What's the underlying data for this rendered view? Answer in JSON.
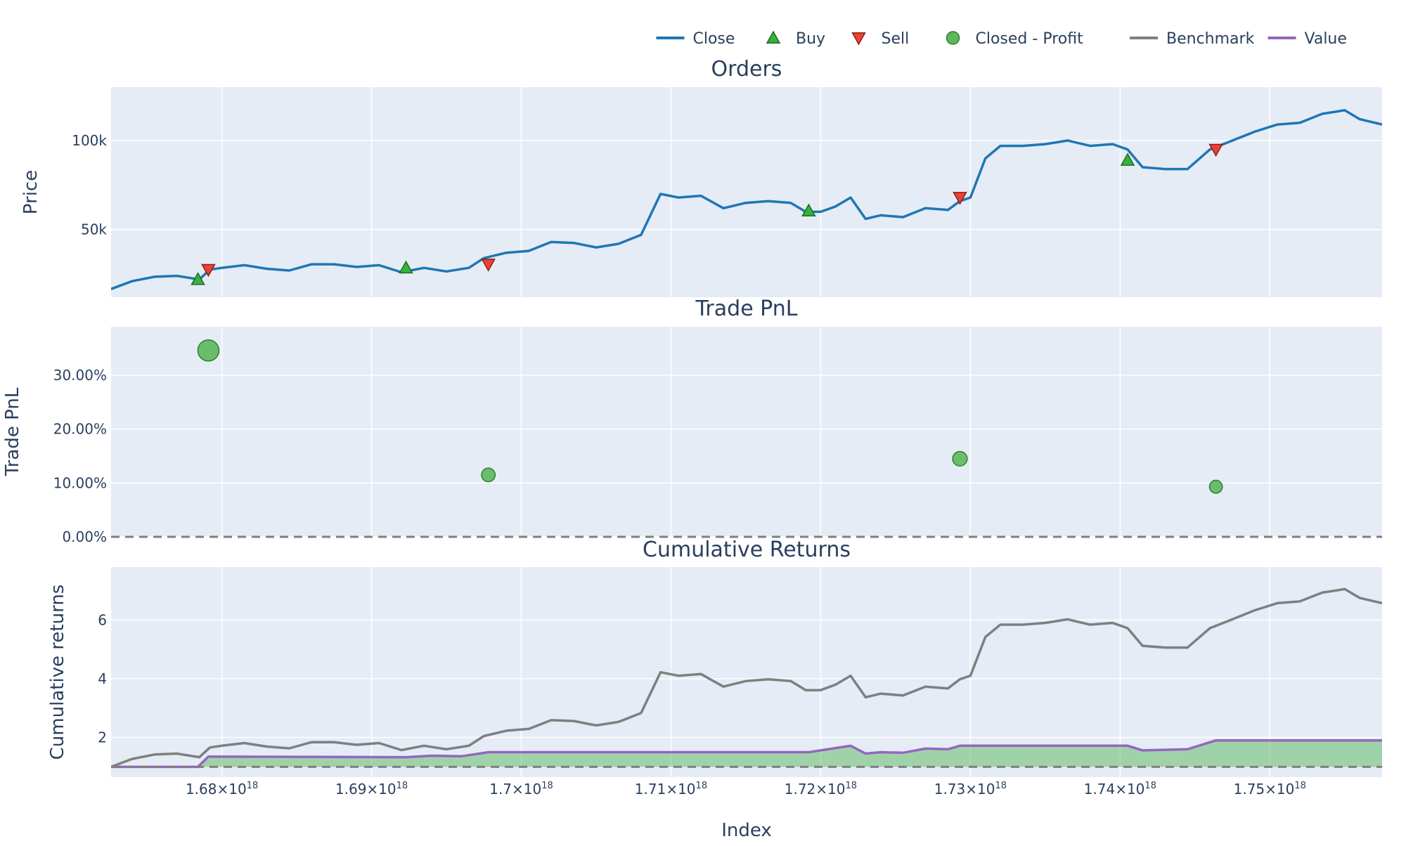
{
  "legend": [
    {
      "label": "Close",
      "symbol": "line",
      "color": "#1f77b4"
    },
    {
      "label": "Buy",
      "symbol": "triangle-up",
      "color": "#37b13f"
    },
    {
      "label": "Sell",
      "symbol": "triangle-down",
      "color": "#ea4335"
    },
    {
      "label": "Closed - Profit",
      "symbol": "circle",
      "color": "#5cb85c"
    },
    {
      "label": "Benchmark",
      "symbol": "line",
      "color": "#7f7f7f"
    },
    {
      "label": "Value",
      "symbol": "line",
      "color": "#9467bd"
    }
  ],
  "colors": {
    "plot_bg": "#e5ecf6",
    "grid": "#ffffff",
    "close": "#1f77b4",
    "benchmark": "#7f7f7f",
    "value": "#9467bd",
    "fill": "#5cb85c",
    "buy": "#37b13f",
    "sell": "#ea4335",
    "profit": "#5cb85c",
    "dashed": "#7f7f7f"
  },
  "chart_data": [
    {
      "type": "line",
      "title": "Orders",
      "xlabel": "",
      "ylabel": "Price",
      "xlim": [
        1.6726e+18,
        1.7575e+18
      ],
      "ylim": [
        12000,
        130000
      ],
      "y_ticks": [
        {
          "value": 50000,
          "label": "50k"
        },
        {
          "value": 100000,
          "label": "100k"
        }
      ],
      "series": [
        {
          "name": "Close",
          "x": [
            1.6726e+18,
            1.674e+18,
            1.6755e+18,
            1.677e+18,
            1.6785e+18,
            1.6792e+18,
            1.68e+18,
            1.6815e+18,
            1.683e+18,
            1.6845e+18,
            1.686e+18,
            1.6875e+18,
            1.689e+18,
            1.6905e+18,
            1.692e+18,
            1.6935e+18,
            1.695e+18,
            1.6965e+18,
            1.6975e+18,
            1.699e+18,
            1.7005e+18,
            1.702e+18,
            1.7035e+18,
            1.705e+18,
            1.7065e+18,
            1.708e+18,
            1.7093e+18,
            1.7105e+18,
            1.712e+18,
            1.7135e+18,
            1.715e+18,
            1.7165e+18,
            1.718e+18,
            1.719e+18,
            1.72e+18,
            1.721e+18,
            1.722e+18,
            1.723e+18,
            1.724e+18,
            1.7255e+18,
            1.727e+18,
            1.7285e+18,
            1.7293e+18,
            1.73e+18,
            1.731e+18,
            1.732e+18,
            1.7335e+18,
            1.735e+18,
            1.7365e+18,
            1.738e+18,
            1.7395e+18,
            1.7405e+18,
            1.7415e+18,
            1.743e+18,
            1.7445e+18,
            1.746e+18,
            1.7475e+18,
            1.749e+18,
            1.7505e+18,
            1.752e+18,
            1.7535e+18,
            1.755e+18,
            1.756e+18,
            1.7575e+18
          ],
          "values": [
            16600,
            21000,
            23500,
            24000,
            22000,
            27500,
            28500,
            30000,
            28000,
            27000,
            30500,
            30500,
            29000,
            30000,
            26000,
            28500,
            26500,
            28500,
            34000,
            37000,
            38000,
            43000,
            42500,
            40000,
            42000,
            47000,
            70000,
            68000,
            69000,
            62000,
            65000,
            66000,
            65000,
            60000,
            60000,
            63000,
            68000,
            56000,
            58000,
            57000,
            62000,
            61000,
            66000,
            68000,
            90000,
            97000,
            97000,
            98000,
            100000,
            97000,
            98000,
            95000,
            85000,
            84000,
            84000,
            95000,
            100000,
            105000,
            109000,
            110000,
            115000,
            117000,
            112000,
            109000
          ]
        }
      ],
      "buys": [
        {
          "x": 1.6784e+18,
          "y": 22000
        },
        {
          "x": 1.6923e+18,
          "y": 28500
        },
        {
          "x": 1.7192e+18,
          "y": 60500
        },
        {
          "x": 1.7405e+18,
          "y": 89000
        }
      ],
      "sells": [
        {
          "x": 1.6791e+18,
          "y": 27500
        },
        {
          "x": 1.6978e+18,
          "y": 30500
        },
        {
          "x": 1.7293e+18,
          "y": 68000
        },
        {
          "x": 1.7464e+18,
          "y": 95000
        }
      ]
    },
    {
      "type": "scatter",
      "title": "Trade PnL",
      "xlabel": "",
      "ylabel": "Trade PnL",
      "xlim": [
        1.6726e+18,
        1.7575e+18
      ],
      "ylim": [
        0,
        0.39
      ],
      "y_ticks": [
        {
          "value": 0,
          "label": "0.00%"
        },
        {
          "value": 0.1,
          "label": "10.00%"
        },
        {
          "value": 0.2,
          "label": "20.00%"
        },
        {
          "value": 0.3,
          "label": "30.00%"
        }
      ],
      "series": [
        {
          "name": "Closed - Profit",
          "x": [
            1.6791e+18,
            1.6978e+18,
            1.7293e+18,
            1.7464e+18
          ],
          "values": [
            0.346,
            0.115,
            0.145,
            0.093
          ]
        }
      ]
    },
    {
      "type": "area",
      "title": "Cumulative Returns",
      "xlabel": "Index",
      "ylabel": "Cumulative returns",
      "xlim": [
        1.6726e+18,
        1.7575e+18
      ],
      "ylim": [
        0.65,
        7.8
      ],
      "y_ticks": [
        {
          "value": 2,
          "label": "2"
        },
        {
          "value": 4,
          "label": "4"
        },
        {
          "value": 6,
          "label": "6"
        }
      ],
      "x_ticks": [
        {
          "value": 1.68e+18,
          "label": "1.68×10",
          "exp": "18"
        },
        {
          "value": 1.69e+18,
          "label": "1.69×10",
          "exp": "18"
        },
        {
          "value": 1.7e+18,
          "label": "1.7×10",
          "exp": "18"
        },
        {
          "value": 1.71e+18,
          "label": "1.71×10",
          "exp": "18"
        },
        {
          "value": 1.72e+18,
          "label": "1.72×10",
          "exp": "18"
        },
        {
          "value": 1.73e+18,
          "label": "1.73×10",
          "exp": "18"
        },
        {
          "value": 1.74e+18,
          "label": "1.74×10",
          "exp": "18"
        },
        {
          "value": 1.75e+18,
          "label": "1.75×10",
          "exp": "18"
        }
      ],
      "series": [
        {
          "name": "Benchmark",
          "x": [
            1.6726e+18,
            1.674e+18,
            1.6755e+18,
            1.677e+18,
            1.6785e+18,
            1.6792e+18,
            1.68e+18,
            1.6815e+18,
            1.683e+18,
            1.6845e+18,
            1.686e+18,
            1.6875e+18,
            1.689e+18,
            1.6905e+18,
            1.692e+18,
            1.6935e+18,
            1.695e+18,
            1.6965e+18,
            1.6975e+18,
            1.699e+18,
            1.7005e+18,
            1.702e+18,
            1.7035e+18,
            1.705e+18,
            1.7065e+18,
            1.708e+18,
            1.7093e+18,
            1.7105e+18,
            1.712e+18,
            1.7135e+18,
            1.715e+18,
            1.7165e+18,
            1.718e+18,
            1.719e+18,
            1.72e+18,
            1.721e+18,
            1.722e+18,
            1.723e+18,
            1.724e+18,
            1.7255e+18,
            1.727e+18,
            1.7285e+18,
            1.7293e+18,
            1.73e+18,
            1.731e+18,
            1.732e+18,
            1.7335e+18,
            1.735e+18,
            1.7365e+18,
            1.738e+18,
            1.7395e+18,
            1.7405e+18,
            1.7415e+18,
            1.743e+18,
            1.7445e+18,
            1.746e+18,
            1.7475e+18,
            1.749e+18,
            1.7505e+18,
            1.752e+18,
            1.7535e+18,
            1.755e+18,
            1.756e+18,
            1.7575e+18
          ],
          "values": [
            1.0,
            1.27,
            1.42,
            1.45,
            1.33,
            1.66,
            1.72,
            1.81,
            1.69,
            1.63,
            1.84,
            1.84,
            1.75,
            1.81,
            1.57,
            1.72,
            1.6,
            1.72,
            2.05,
            2.23,
            2.29,
            2.59,
            2.56,
            2.41,
            2.53,
            2.83,
            4.22,
            4.1,
            4.16,
            3.73,
            3.92,
            3.98,
            3.92,
            3.61,
            3.61,
            3.8,
            4.1,
            3.37,
            3.49,
            3.43,
            3.73,
            3.67,
            3.98,
            4.1,
            5.42,
            5.84,
            5.84,
            5.9,
            6.02,
            5.84,
            5.9,
            5.72,
            5.12,
            5.06,
            5.06,
            5.72,
            6.02,
            6.33,
            6.57,
            6.63,
            6.93,
            7.05,
            6.75,
            6.57
          ]
        },
        {
          "name": "Value",
          "x": [
            1.6726e+18,
            1.6784e+18,
            1.6791e+18,
            1.6923e+18,
            1.694e+18,
            1.696e+18,
            1.6978e+18,
            1.7192e+18,
            1.72e+18,
            1.721e+18,
            1.722e+18,
            1.723e+18,
            1.724e+18,
            1.7255e+18,
            1.727e+18,
            1.7285e+18,
            1.7293e+18,
            1.7405e+18,
            1.7415e+18,
            1.743e+18,
            1.7445e+18,
            1.7464e+18,
            1.7575e+18
          ],
          "values": [
            1.0,
            1.0,
            1.35,
            1.33,
            1.38,
            1.36,
            1.5,
            1.5,
            1.56,
            1.64,
            1.72,
            1.45,
            1.5,
            1.48,
            1.62,
            1.6,
            1.72,
            1.72,
            1.56,
            1.58,
            1.6,
            1.9,
            1.9
          ]
        }
      ]
    }
  ]
}
